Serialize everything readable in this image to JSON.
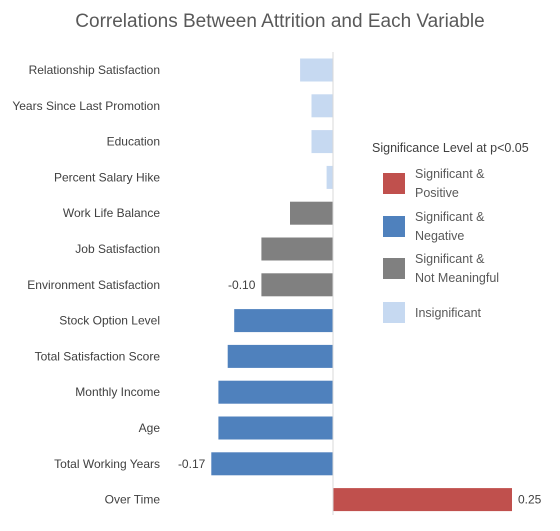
{
  "chart_data": {
    "type": "bar",
    "orientation": "horizontal",
    "title": "Correlations Between Attrition and Each Variable",
    "xlabel": "",
    "ylabel": "",
    "xlim": [
      -0.25,
      0.26
    ],
    "grid": false,
    "legend_position": "right",
    "legend_title": "Significance Level at p<0.05",
    "legend": [
      {
        "key": "sig_pos",
        "line1": "Significant &",
        "line2": "Positive",
        "color": "#C0504D"
      },
      {
        "key": "sig_neg",
        "line1": "Significant &",
        "line2": "Negative",
        "color": "#4F81BD"
      },
      {
        "key": "sig_nm",
        "line1": "Significant &",
        "line2": "Not Meaningful",
        "color": "#808080"
      },
      {
        "key": "insig",
        "line1": "Insignificant",
        "line2": "",
        "color": "#C6D9F1"
      }
    ],
    "categories": [
      "Relationship Satisfaction",
      "Years Since Last Promotion",
      "Education",
      "Percent Salary Hike",
      "Work Life Balance",
      "Job Satisfaction",
      "Environment Satisfaction",
      "Stock Option Level",
      "Total Satisfaction Score",
      "Monthly Income",
      "Age",
      "Total Working Years",
      "Over Time"
    ],
    "values": [
      -0.046,
      -0.03,
      -0.03,
      -0.009,
      -0.06,
      -0.1,
      -0.1,
      -0.138,
      -0.147,
      -0.16,
      -0.16,
      -0.17,
      0.25
    ],
    "groups": [
      "insig",
      "insig",
      "insig",
      "insig",
      "sig_nm",
      "sig_nm",
      "sig_nm",
      "sig_neg",
      "sig_neg",
      "sig_neg",
      "sig_neg",
      "sig_neg",
      "sig_pos"
    ],
    "data_labels": [
      "",
      "",
      "",
      "",
      "",
      "",
      "-0.10",
      "",
      "",
      "",
      "",
      "-0.17",
      "0.25"
    ]
  }
}
